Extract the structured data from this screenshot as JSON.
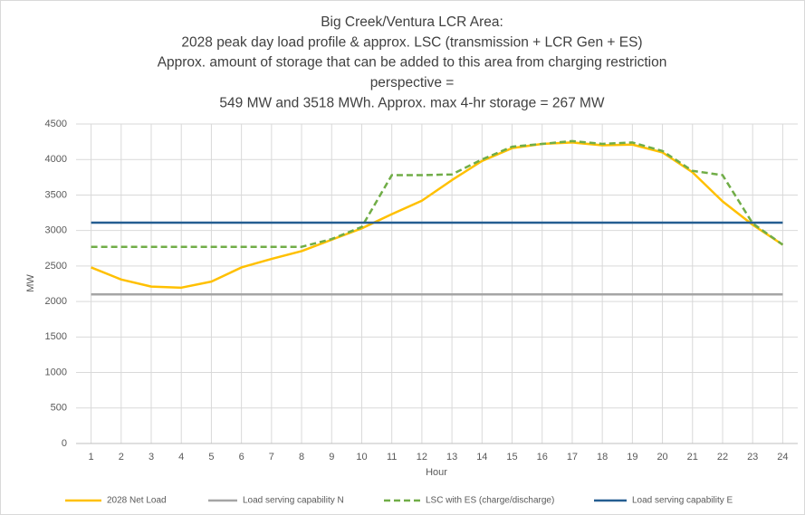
{
  "chart_data": {
    "type": "line",
    "title": [
      "Big Creek/Ventura  LCR Area:",
      "2028 peak day load profile & approx. LSC (transmission + LCR Gen + ES)",
      "Approx. amount of storage that can be added to this area from charging restriction",
      "perspective =",
      "549 MW and 3518 MWh. Approx. max 4-hr storage = 267 MW"
    ],
    "x_label": "Hour",
    "y_label": "MW",
    "categories": [
      "1",
      "2",
      "3",
      "4",
      "5",
      "6",
      "7",
      "8",
      "9",
      "10",
      "11",
      "12",
      "13",
      "14",
      "15",
      "16",
      "17",
      "18",
      "19",
      "20",
      "21",
      "22",
      "23",
      "24"
    ],
    "series": [
      {
        "name": "2028 Net Load",
        "color": "#ffc000",
        "dashed": false,
        "values": [
          2480,
          2310,
          2210,
          2195,
          2280,
          2480,
          2600,
          2710,
          2870,
          3030,
          3230,
          3420,
          3710,
          3980,
          4160,
          4220,
          4240,
          4200,
          4210,
          4100,
          3820,
          3410,
          3080,
          2800
        ]
      },
      {
        "name": "Load serving capability N",
        "color": "#a5a5a5",
        "dashed": false,
        "values": [
          2100,
          2100,
          2100,
          2100,
          2100,
          2100,
          2100,
          2100,
          2100,
          2100,
          2100,
          2100,
          2100,
          2100,
          2100,
          2100,
          2100,
          2100,
          2100,
          2100,
          2100,
          2100,
          2100,
          2100
        ]
      },
      {
        "name": "LSC with ES (charge/discharge)",
        "color": "#70ad47",
        "dashed": true,
        "values": [
          2770,
          2770,
          2770,
          2770,
          2770,
          2770,
          2770,
          2770,
          2880,
          3050,
          3780,
          3780,
          3790,
          4000,
          4180,
          4220,
          4260,
          4220,
          4240,
          4120,
          3840,
          3780,
          3100,
          2800
        ]
      },
      {
        "name": "Load serving capability E",
        "color": "#255e91",
        "dashed": false,
        "values": [
          3110,
          3110,
          3110,
          3110,
          3110,
          3110,
          3110,
          3110,
          3110,
          3110,
          3110,
          3110,
          3110,
          3110,
          3110,
          3110,
          3110,
          3110,
          3110,
          3110,
          3110,
          3110,
          3110,
          3110
        ]
      }
    ],
    "ylim": [
      0,
      4500
    ],
    "yticks": [
      0,
      500,
      1000,
      1500,
      2000,
      2500,
      3000,
      3500,
      4000,
      4500
    ],
    "grid": true,
    "legend": "bottom"
  }
}
